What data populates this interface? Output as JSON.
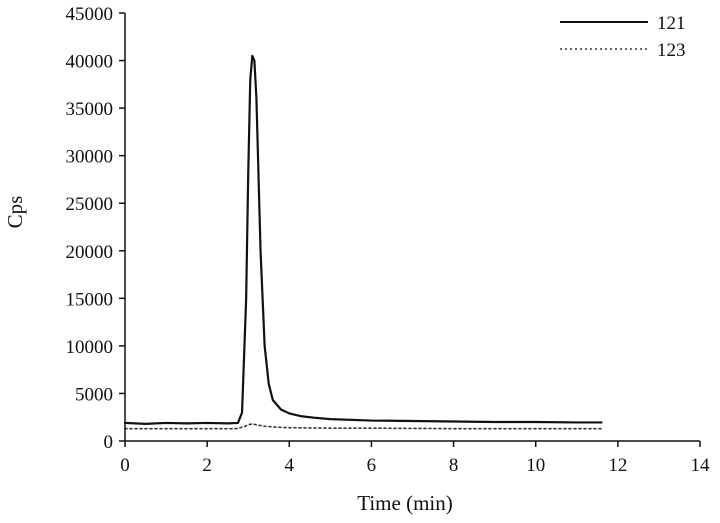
{
  "chart_data": {
    "type": "line",
    "xlabel": "Time (min)",
    "ylabel": "Cps",
    "xlim": [
      0,
      14
    ],
    "ylim": [
      0,
      45000
    ],
    "xticks": [
      0,
      2,
      4,
      6,
      8,
      10,
      12,
      14
    ],
    "yticks": [
      0,
      5000,
      10000,
      15000,
      20000,
      25000,
      30000,
      35000,
      40000,
      45000
    ],
    "grid": false,
    "legend_position": "top-right",
    "series": [
      {
        "name": "121",
        "line_style": "solid",
        "color": "#111111",
        "x": [
          0,
          0.5,
          1.0,
          1.5,
          2.0,
          2.5,
          2.75,
          2.85,
          2.95,
          3.0,
          3.05,
          3.1,
          3.15,
          3.2,
          3.3,
          3.4,
          3.5,
          3.6,
          3.8,
          4.0,
          4.3,
          4.6,
          5.0,
          6.0,
          7.0,
          8.0,
          9.0,
          10.0,
          11.0,
          11.6
        ],
        "y": [
          1900,
          1800,
          1900,
          1850,
          1900,
          1850,
          1900,
          3000,
          15000,
          28000,
          38000,
          40500,
          40000,
          36000,
          20000,
          10000,
          6000,
          4300,
          3300,
          2900,
          2600,
          2450,
          2300,
          2150,
          2100,
          2050,
          2000,
          2000,
          1950,
          1950
        ]
      },
      {
        "name": "123",
        "line_style": "dotted",
        "color": "#333333",
        "x": [
          0,
          1.0,
          2.0,
          2.7,
          2.9,
          3.0,
          3.1,
          3.2,
          3.4,
          3.7,
          4.0,
          5.0,
          6.0,
          8.0,
          10.0,
          11.6
        ],
        "y": [
          1300,
          1300,
          1300,
          1300,
          1500,
          1700,
          1800,
          1700,
          1550,
          1450,
          1400,
          1350,
          1350,
          1300,
          1300,
          1300
        ]
      }
    ]
  }
}
